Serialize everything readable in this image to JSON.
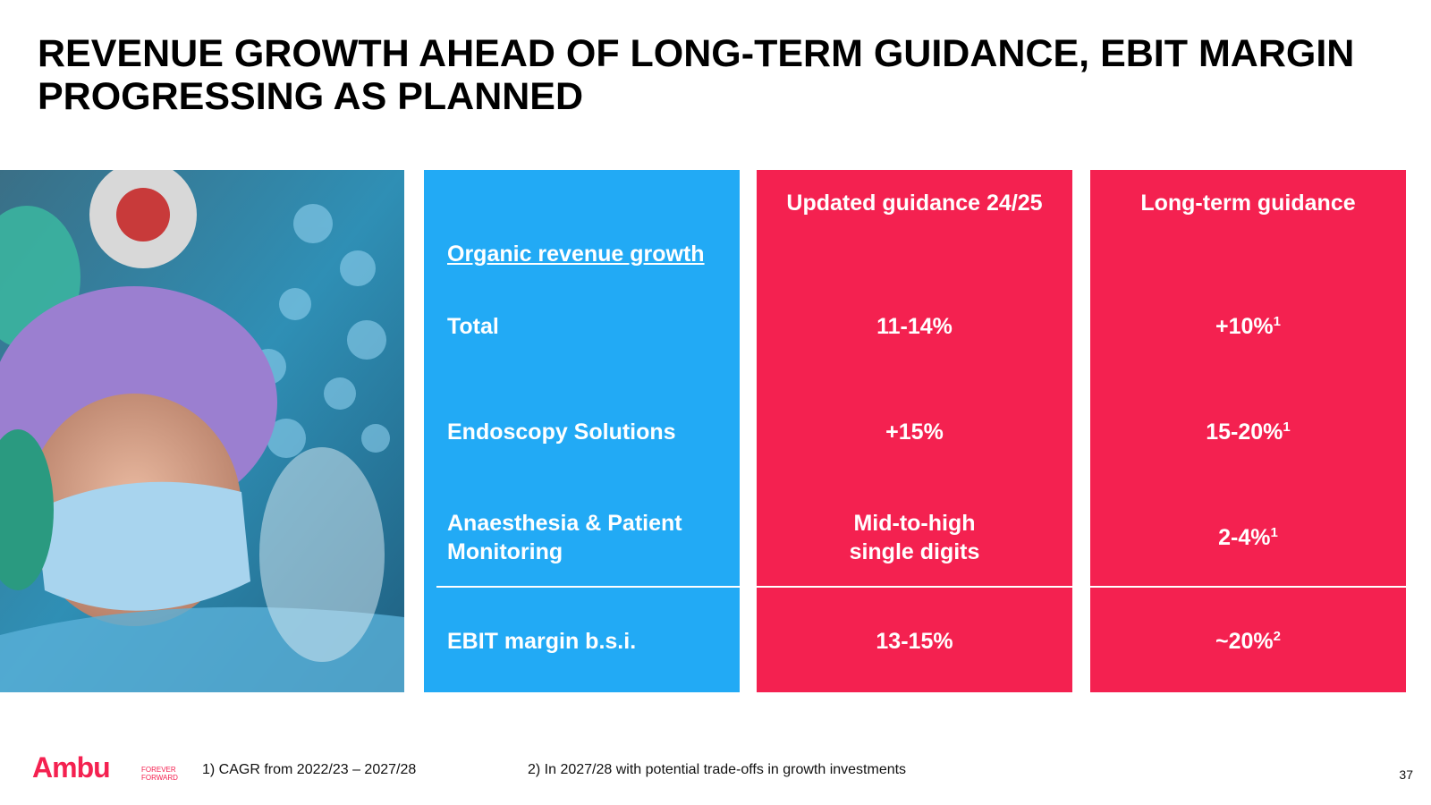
{
  "header": {
    "title": "REVENUE GROWTH AHEAD OF LONG-TERM GUIDANCE, EBIT MARGIN PROGRESSING AS PLANNED"
  },
  "table": {
    "columns": [
      "Updated guidance 24/25",
      "Long-term guidance"
    ],
    "section": "Organic revenue growth",
    "rows": [
      {
        "label": "Total",
        "updated": "11-14%",
        "long_term": {
          "text": "+10%",
          "note": "1"
        }
      },
      {
        "label": "Endoscopy Solutions",
        "updated": "+15%",
        "long_term": {
          "text": "15-20%",
          "note": "1"
        }
      },
      {
        "label": "Anaesthesia & Patient Monitoring",
        "updated": "Mid-to-high single digits",
        "long_term": {
          "text": "2-4%",
          "note": "1"
        }
      },
      {
        "label": "EBIT margin b.s.i.",
        "updated": "13-15%",
        "long_term": {
          "text": "~20%",
          "note": "2"
        }
      }
    ]
  },
  "footer": {
    "logo": {
      "name": "Ambu",
      "tagline": [
        "FOREVER",
        "FORWARD"
      ]
    },
    "notes": [
      "1) CAGR from 2022/23 – 2027/28",
      "2) In 2027/28 with potential trade-offs in growth investments"
    ],
    "page": "37"
  }
}
